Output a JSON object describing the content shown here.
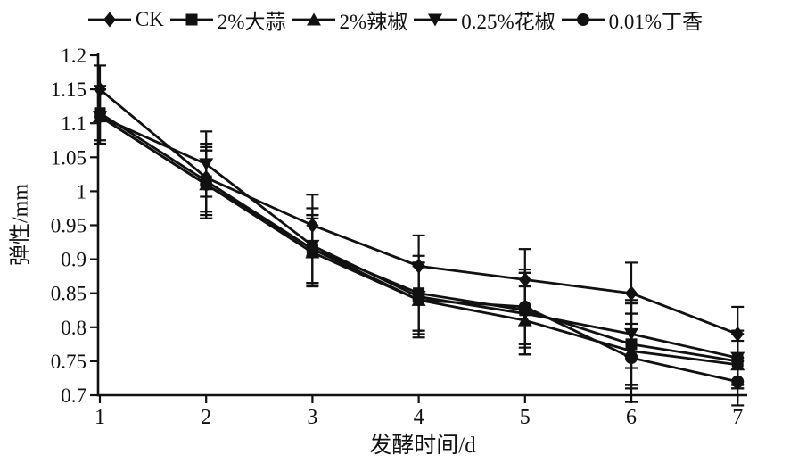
{
  "figure": {
    "background": "#ffffff",
    "ink_color": "#111111"
  },
  "chart_data": {
    "type": "line",
    "x": [
      1,
      2,
      3,
      4,
      5,
      6,
      7
    ],
    "xlabel": "发酵时间/d",
    "ylabel": "弹性/mm",
    "xlim": [
      1,
      7
    ],
    "ylim": [
      0.7,
      1.2
    ],
    "ytick_labels": [
      "0.7",
      "0.75",
      "0.8",
      "0.85",
      "0.9",
      "0.95",
      "1",
      "1.05",
      "1.1",
      "1.15",
      "1.2"
    ],
    "xtick_labels": [
      "1",
      "2",
      "3",
      "4",
      "5",
      "6",
      "7"
    ],
    "grid": false,
    "legend_position": "top",
    "error_bars": true,
    "series": [
      {
        "name": "CK",
        "marker": "diamond",
        "values": [
          1.15,
          1.02,
          0.95,
          0.89,
          0.87,
          0.85,
          0.79
        ],
        "errors": [
          0.035,
          0.05,
          0.045,
          0.045,
          0.045,
          0.045,
          0.04
        ]
      },
      {
        "name": "2%大蒜",
        "marker": "square",
        "values": [
          1.115,
          1.015,
          0.915,
          0.85,
          0.825,
          0.775,
          0.75
        ],
        "errors": [
          0.04,
          0.05,
          0.05,
          0.055,
          0.055,
          0.06,
          0.04
        ]
      },
      {
        "name": "2%辣椒",
        "marker": "triangle-up",
        "values": [
          1.11,
          1.01,
          0.91,
          0.84,
          0.81,
          0.765,
          0.745
        ],
        "errors": [
          0.04,
          0.05,
          0.05,
          0.05,
          0.05,
          0.055,
          0.035
        ]
      },
      {
        "name": "0.25%花椒",
        "marker": "triangle-down",
        "values": [
          1.11,
          1.04,
          0.92,
          0.845,
          0.82,
          0.79,
          0.755
        ],
        "errors": [
          0.04,
          0.048,
          0.055,
          0.05,
          0.06,
          0.05,
          0.04
        ]
      },
      {
        "name": "0.01%丁香",
        "marker": "circle",
        "values": [
          1.11,
          1.01,
          0.915,
          0.84,
          0.83,
          0.755,
          0.72
        ],
        "errors": [
          0.04,
          0.05,
          0.05,
          0.055,
          0.055,
          0.065,
          0.035
        ]
      }
    ]
  }
}
